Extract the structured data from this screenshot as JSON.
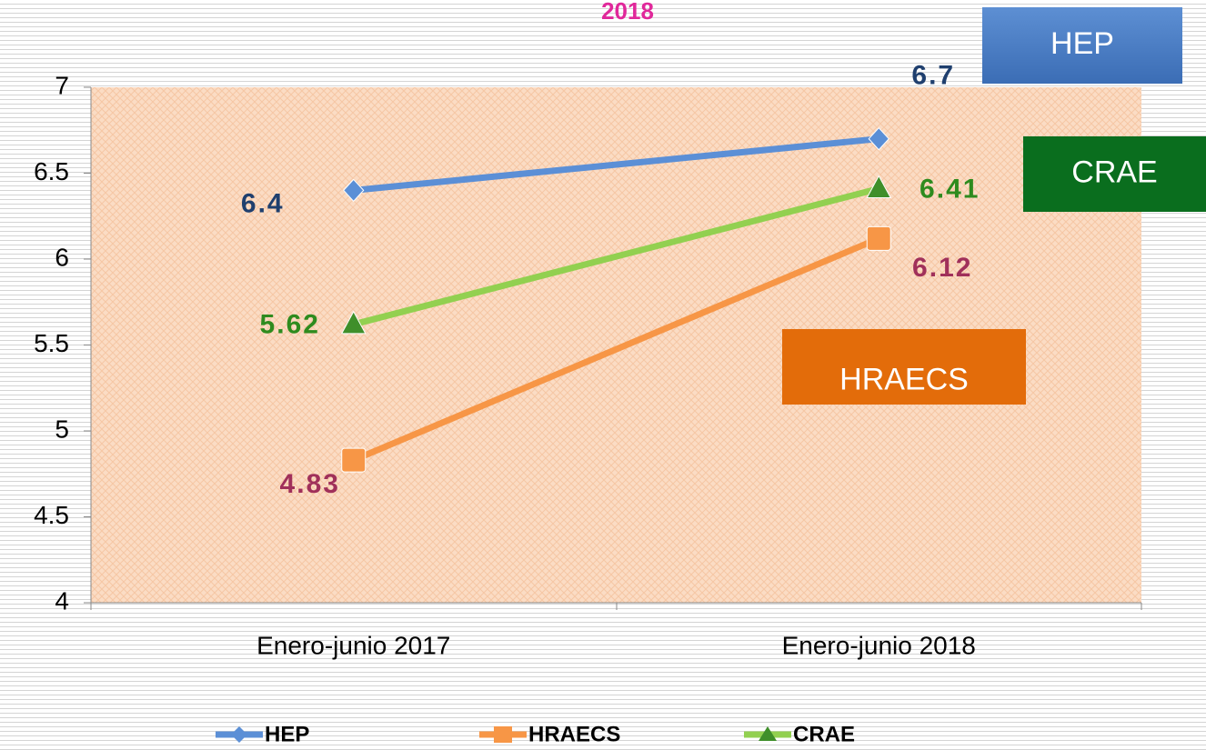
{
  "chart_data": {
    "type": "line",
    "title": "2018",
    "categories": [
      "Enero-junio 2017",
      "Enero-junio 2018"
    ],
    "series": [
      {
        "name": "HEP",
        "color": "#5b8fd6",
        "label_color": "#1f3f6e",
        "marker": "diamond",
        "values": [
          6.4,
          6.7
        ]
      },
      {
        "name": "HRAECS",
        "color": "#f79646",
        "label_color": "#a0305a",
        "marker": "square",
        "values": [
          4.83,
          6.12
        ]
      },
      {
        "name": "CRAE",
        "color": "#92d050",
        "label_color": "#2e8b1e",
        "marker": "triangle",
        "values": [
          5.62,
          6.41
        ]
      }
    ],
    "ylim": [
      4,
      7
    ],
    "yticks": [
      4,
      4.5,
      5,
      5.5,
      6,
      6.5,
      7
    ],
    "legend": "bottom"
  }
}
